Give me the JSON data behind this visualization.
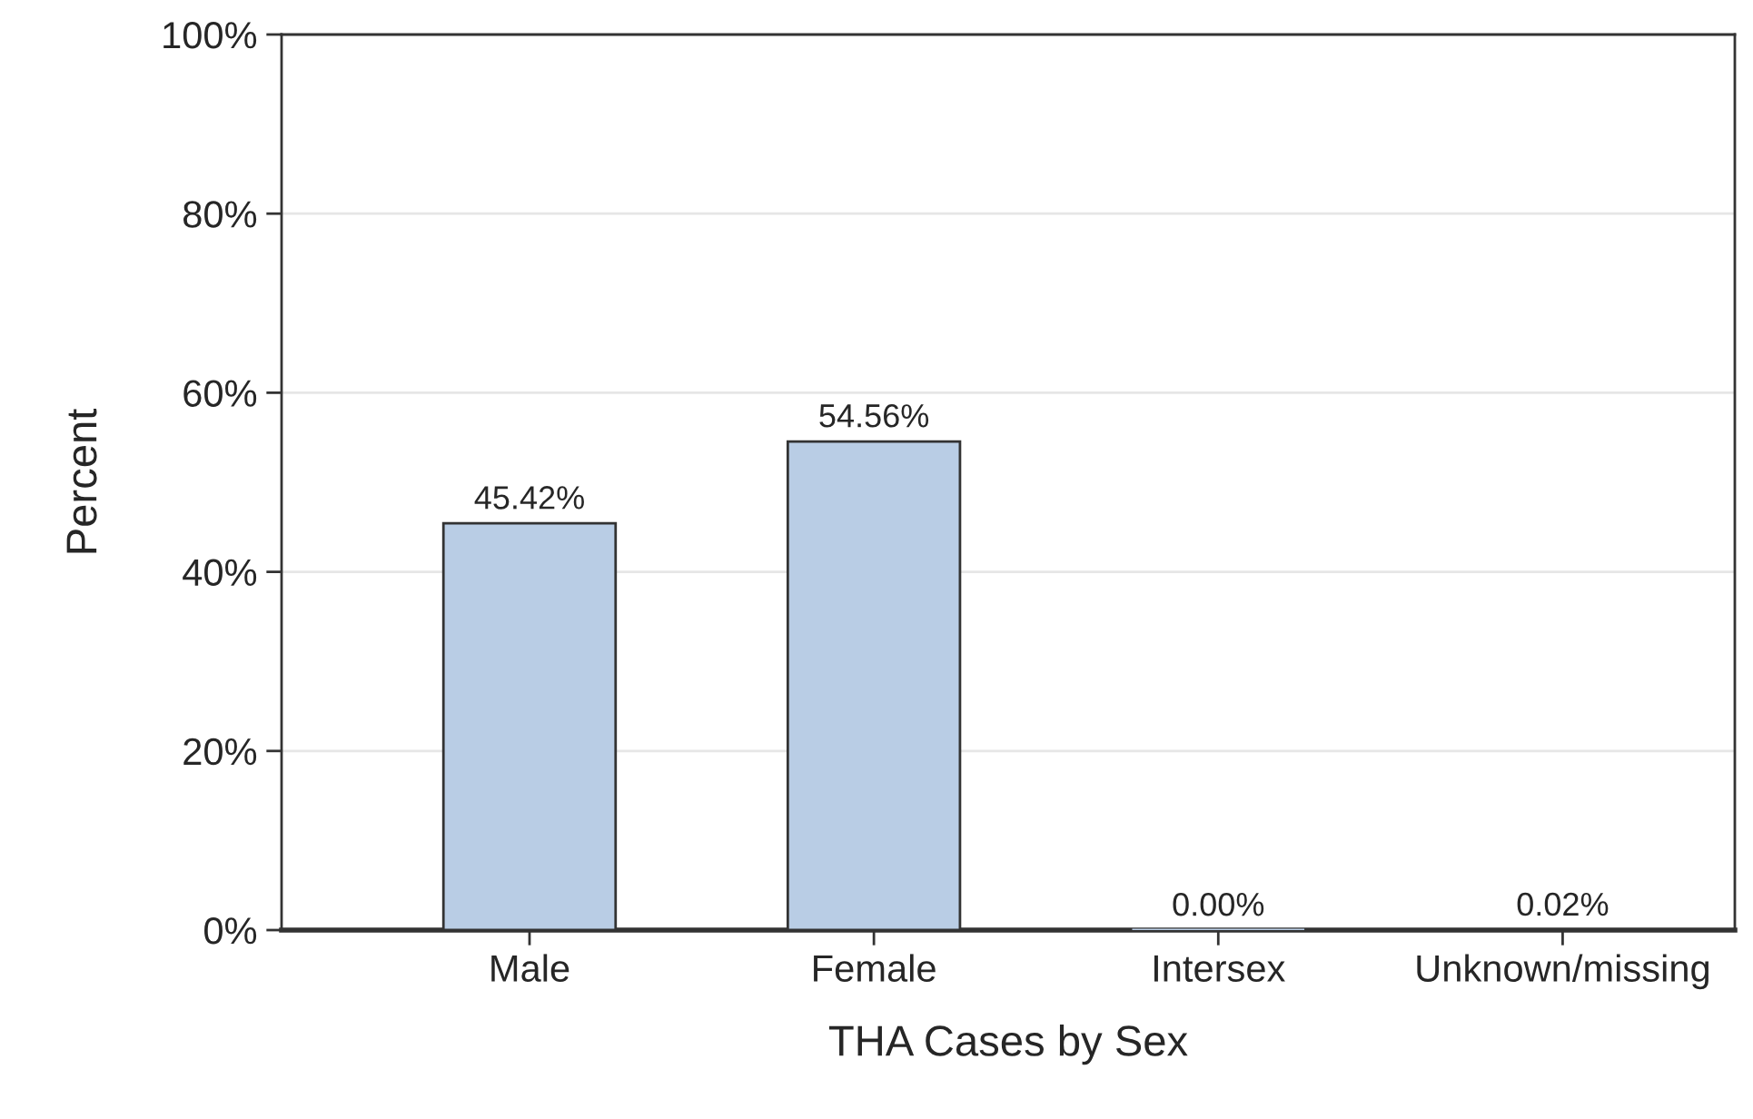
{
  "chart_data": {
    "type": "bar",
    "xlabel": "THA Cases by Sex",
    "ylabel": "Percent",
    "categories": [
      "Male",
      "Female",
      "Intersex",
      "Unknown/missing"
    ],
    "values": [
      45.42,
      54.56,
      0.0,
      0.02
    ],
    "value_labels": [
      "45.42%",
      "54.56%",
      "0.00%",
      "0.02%"
    ],
    "color": "#b9cde5",
    "ylim": [
      0,
      100
    ],
    "yticks": [
      {
        "value": 0,
        "label": "0%"
      },
      {
        "value": 20,
        "label": "20%"
      },
      {
        "value": 40,
        "label": "40%"
      },
      {
        "value": 60,
        "label": "60%"
      },
      {
        "value": 80,
        "label": "80%"
      },
      {
        "value": 100,
        "label": "100%"
      }
    ],
    "grid": "y",
    "legend": false
  }
}
